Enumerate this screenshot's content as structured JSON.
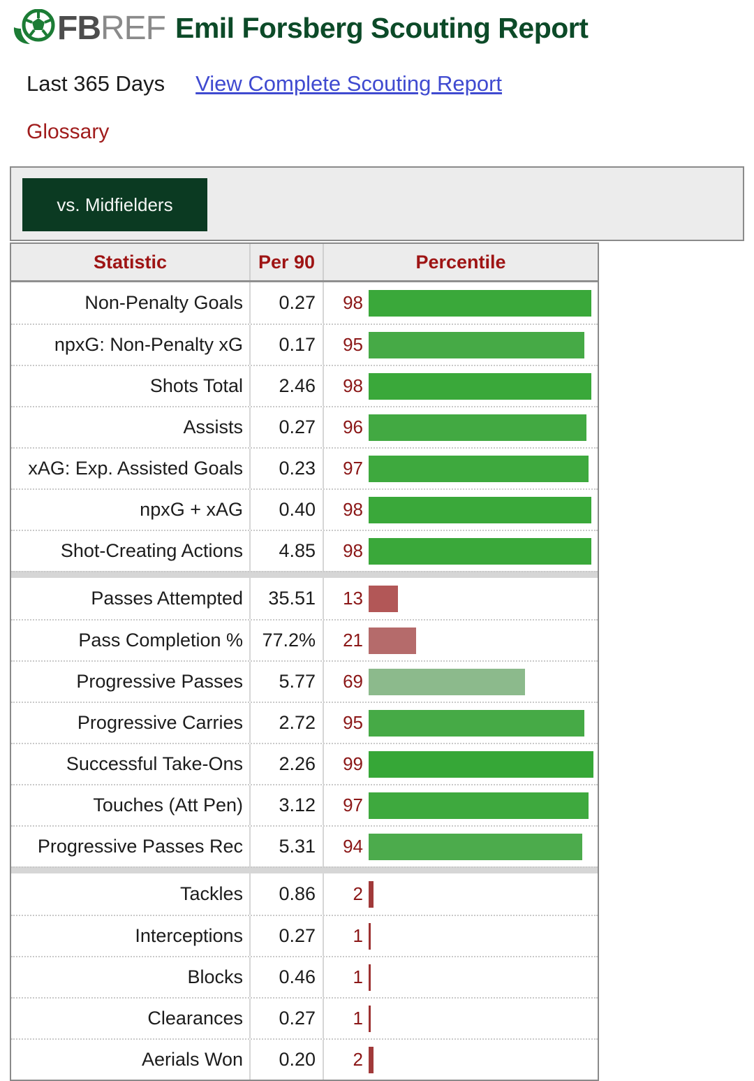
{
  "header": {
    "brand_fb": "FB",
    "brand_ref": "REF",
    "title": "Emil Forsberg Scouting Report",
    "period": "Last 365 Days",
    "complete_link": "View Complete Scouting Report",
    "glossary_link": "Glossary"
  },
  "tab": {
    "label": "vs. Midfielders"
  },
  "table": {
    "columns": [
      "Statistic",
      "Per 90",
      "Percentile"
    ]
  },
  "colors": {
    "title_green": "#0c4a28",
    "tab_background": "#0b3a22",
    "link_blue": "#3f4ad0",
    "glossary_red": "#a01c1c",
    "header_text_red": "#9e1414",
    "percentile_text_red": "#8b1717"
  },
  "icons": {
    "logo": "soccer-ball-icon"
  },
  "chart_data": {
    "type": "bar",
    "orientation": "horizontal",
    "title": "Emil Forsberg Scouting Report — vs. Midfielders (Last 365 Days)",
    "xlabel": "Percentile",
    "xlim": [
      0,
      100
    ],
    "grid": false,
    "legend": "none",
    "columns": [
      "Statistic",
      "Per 90",
      "Percentile"
    ],
    "rows": [
      {
        "group": 1,
        "label": "Non-Penalty Goals",
        "per90": "0.27",
        "percentile": 98,
        "color": "#3aa83a"
      },
      {
        "group": 1,
        "label": "npxG: Non-Penalty xG",
        "per90": "0.17",
        "percentile": 95,
        "color": "#46aa46"
      },
      {
        "group": 1,
        "label": "Shots Total",
        "per90": "2.46",
        "percentile": 98,
        "color": "#3aa83a"
      },
      {
        "group": 1,
        "label": "Assists",
        "per90": "0.27",
        "percentile": 96,
        "color": "#42a942"
      },
      {
        "group": 1,
        "label": "xAG: Exp. Assisted Goals",
        "per90": "0.23",
        "percentile": 97,
        "color": "#3ea93e"
      },
      {
        "group": 1,
        "label": "npxG + xAG",
        "per90": "0.40",
        "percentile": 98,
        "color": "#3aa83a"
      },
      {
        "group": 1,
        "label": "Shot-Creating Actions",
        "per90": "4.85",
        "percentile": 98,
        "color": "#3aa83a"
      },
      {
        "group": 2,
        "label": "Passes Attempted",
        "per90": "35.51",
        "percentile": 13,
        "color": "#b25757"
      },
      {
        "group": 2,
        "label": "Pass Completion %",
        "per90": "77.2%",
        "percentile": 21,
        "color": "#b56b6b"
      },
      {
        "group": 2,
        "label": "Progressive Passes",
        "per90": "5.77",
        "percentile": 69,
        "color": "#8cba8c"
      },
      {
        "group": 2,
        "label": "Progressive Carries",
        "per90": "2.72",
        "percentile": 95,
        "color": "#46aa46"
      },
      {
        "group": 2,
        "label": "Successful Take-Ons",
        "per90": "2.26",
        "percentile": 99,
        "color": "#36a737"
      },
      {
        "group": 2,
        "label": "Touches (Att Pen)",
        "per90": "3.12",
        "percentile": 97,
        "color": "#3ea93e"
      },
      {
        "group": 2,
        "label": "Progressive Passes Rec",
        "per90": "5.31",
        "percentile": 94,
        "color": "#4cab4c"
      },
      {
        "group": 3,
        "label": "Tackles",
        "per90": "0.86",
        "percentile": 2,
        "color": "#a13a3a"
      },
      {
        "group": 3,
        "label": "Interceptions",
        "per90": "0.27",
        "percentile": 1,
        "color": "#9d3232"
      },
      {
        "group": 3,
        "label": "Blocks",
        "per90": "0.46",
        "percentile": 1,
        "color": "#9d3232"
      },
      {
        "group": 3,
        "label": "Clearances",
        "per90": "0.27",
        "percentile": 1,
        "color": "#9d3232"
      },
      {
        "group": 3,
        "label": "Aerials Won",
        "per90": "0.20",
        "percentile": 2,
        "color": "#a13a3a"
      }
    ]
  }
}
